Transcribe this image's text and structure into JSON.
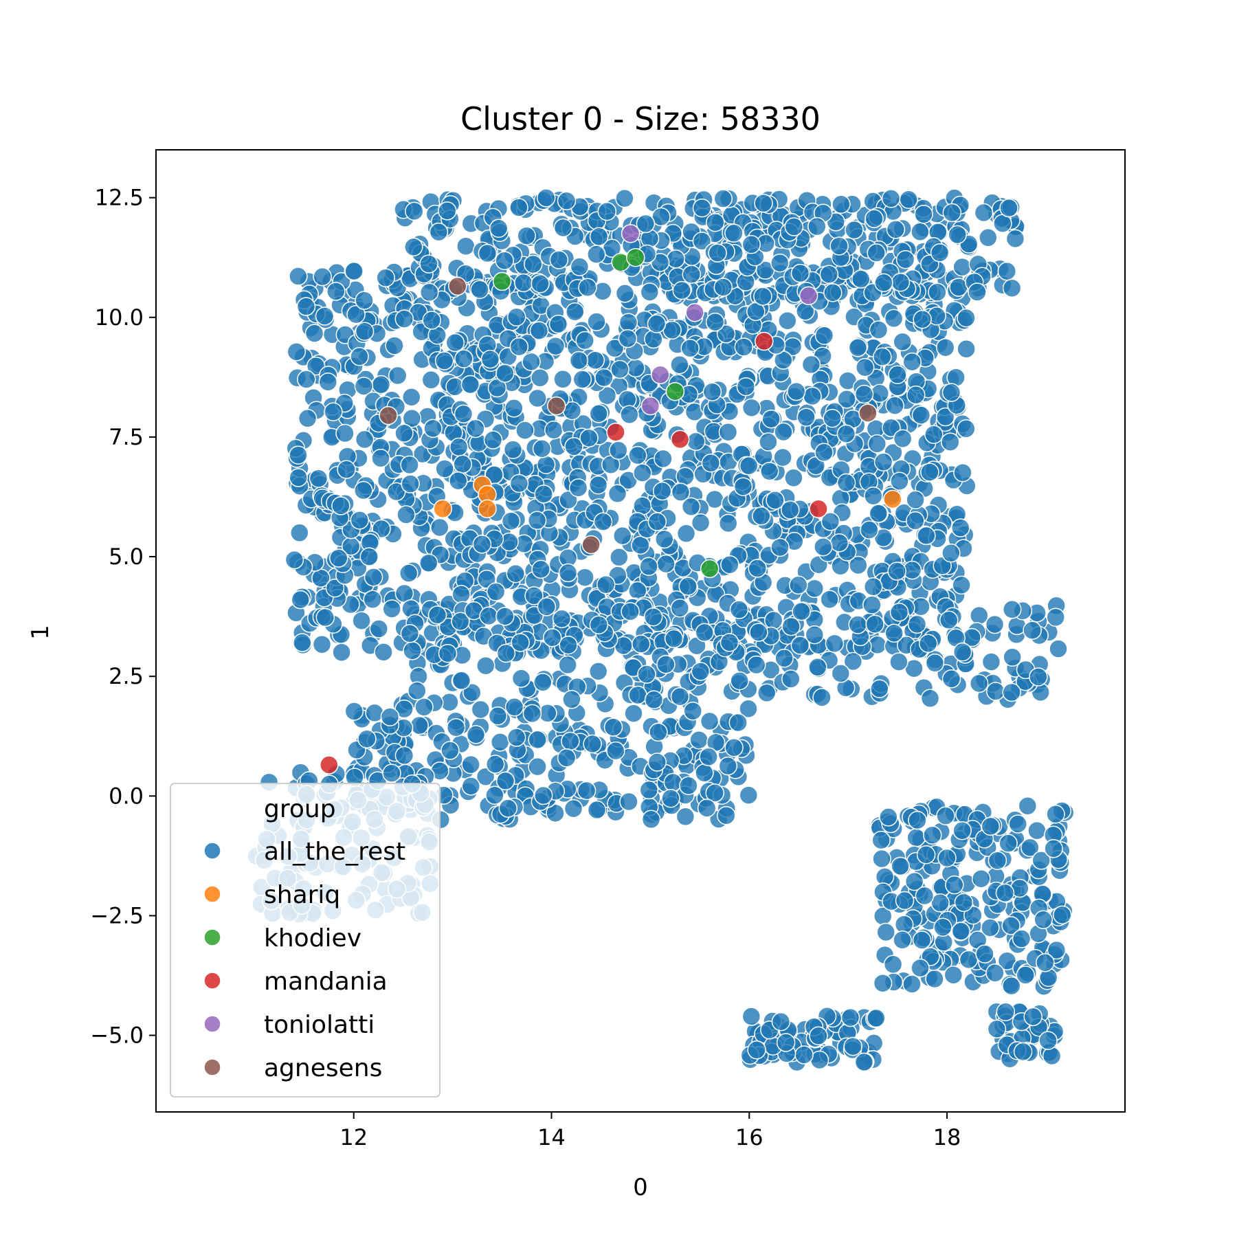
{
  "chart_data": {
    "type": "scatter",
    "title": "Cluster 0 - Size: 58330",
    "xlabel": "0",
    "ylabel": "1",
    "xlim": [
      10.0,
      19.8
    ],
    "ylim": [
      -6.6,
      13.5
    ],
    "xticks": [
      12,
      14,
      16,
      18
    ],
    "xtick_labels": [
      "12",
      "14",
      "16",
      "18"
    ],
    "yticks": [
      -5.0,
      -2.5,
      0.0,
      2.5,
      5.0,
      7.5,
      10.0,
      12.5
    ],
    "ytick_labels": [
      "−5.0",
      "−2.5",
      "0.0",
      "2.5",
      "5.0",
      "7.5",
      "10.0",
      "12.5"
    ],
    "grid": false,
    "legend": {
      "title": "group",
      "placement": "lower-left"
    },
    "series": [
      {
        "name": "all_the_rest",
        "color": "#1f77b4",
        "regions": [
          {
            "x": [
              11.4,
              18.2
            ],
            "y": [
              3.0,
              11.0
            ]
          },
          {
            "x": [
              12.5,
              18.7
            ],
            "y": [
              10.5,
              12.5
            ]
          },
          {
            "x": [
              12.0,
              16.0
            ],
            "y": [
              -0.5,
              2.0
            ]
          },
          {
            "x": [
              12.5,
              19.2
            ],
            "y": [
              2.0,
              4.0
            ]
          },
          {
            "x": [
              17.3,
              19.2
            ],
            "y": [
              -4.0,
              -0.2
            ]
          },
          {
            "x": [
              16.0,
              17.3
            ],
            "y": [
              -5.6,
              -4.6
            ]
          },
          {
            "x": [
              18.5,
              19.1
            ],
            "y": [
              -5.5,
              -4.5
            ]
          },
          {
            "x": [
              11.0,
              12.8
            ],
            "y": [
              -2.5,
              0.5
            ]
          }
        ]
      },
      {
        "name": "shariq",
        "color": "#ff7f0e",
        "points": [
          [
            12.9,
            6.0
          ],
          [
            13.3,
            6.5
          ],
          [
            13.35,
            6.3
          ],
          [
            13.35,
            6.0
          ],
          [
            17.45,
            6.2
          ]
        ]
      },
      {
        "name": "khodiev",
        "color": "#2ca02c",
        "points": [
          [
            13.5,
            10.75
          ],
          [
            14.7,
            11.15
          ],
          [
            14.85,
            11.25
          ],
          [
            15.25,
            8.45
          ],
          [
            15.6,
            4.75
          ]
        ]
      },
      {
        "name": "mandania",
        "color": "#d62728",
        "points": [
          [
            11.75,
            0.65
          ],
          [
            14.65,
            7.6
          ],
          [
            15.3,
            7.45
          ],
          [
            16.15,
            9.5
          ],
          [
            16.7,
            6.0
          ]
        ]
      },
      {
        "name": "toniolatti",
        "color": "#9467bd",
        "points": [
          [
            14.8,
            11.75
          ],
          [
            15.1,
            8.8
          ],
          [
            15.0,
            8.15
          ],
          [
            15.45,
            10.1
          ],
          [
            16.6,
            10.45
          ]
        ]
      },
      {
        "name": "agnesens",
        "color": "#8c564b",
        "points": [
          [
            13.05,
            10.65
          ],
          [
            12.35,
            7.95
          ],
          [
            14.05,
            8.15
          ],
          [
            14.4,
            5.25
          ],
          [
            17.2,
            8.0
          ]
        ]
      }
    ]
  }
}
